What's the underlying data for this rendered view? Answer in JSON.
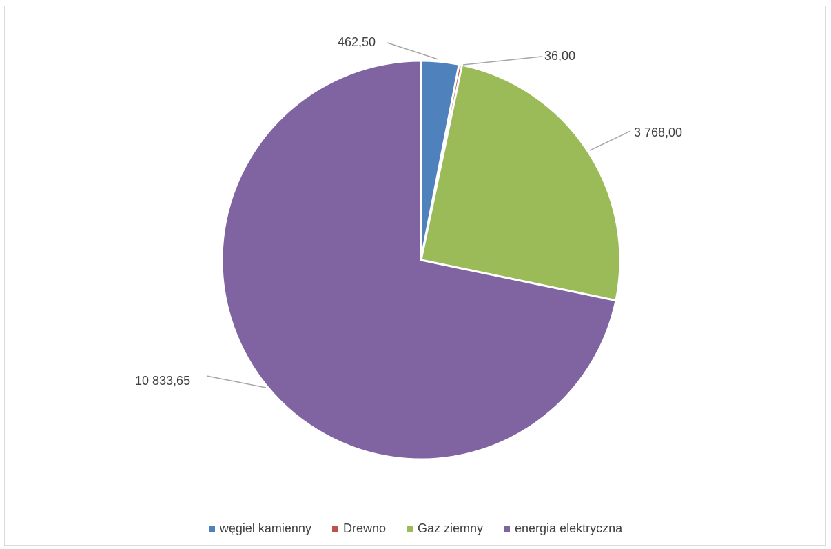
{
  "chart_data": {
    "type": "pie",
    "categories": [
      "węgiel kamienny",
      "Drewno",
      "Gaz ziemny",
      "energia elektryczna"
    ],
    "values": [
      462.5,
      36.0,
      3768.0,
      10833.65
    ],
    "data_labels": [
      "462,50",
      "36,00",
      "3 768,00",
      "10 833,65"
    ],
    "colors": [
      "#4f81bd",
      "#c0504d",
      "#9bbb59",
      "#8064a2"
    ],
    "start_angle_deg": 0,
    "direction": "clockwise",
    "legend_position": "bottom"
  }
}
